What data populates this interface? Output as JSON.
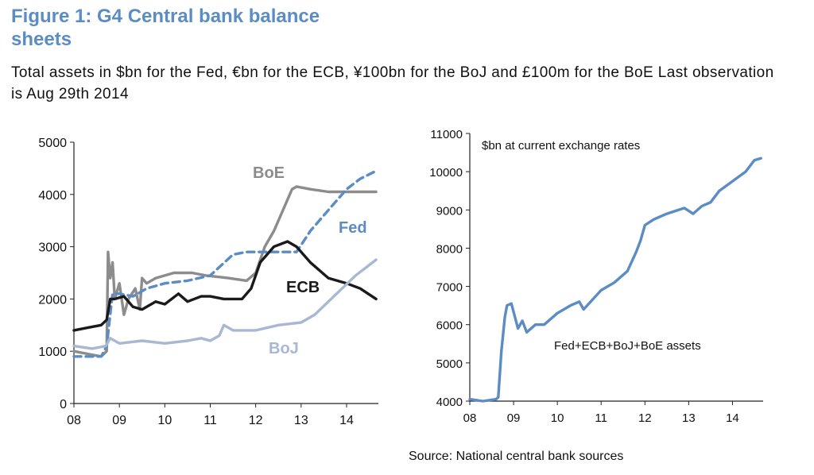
{
  "title": "Figure 1: G4 Central bank balance sheets",
  "subtitle": "Total assets in $bn for the Fed, €bn for the  ECB, ¥100bn for the BoJ and £100m for the BoE Last observation is Aug 29th 2014",
  "source": "Source: National central bank sources",
  "chart_data": [
    {
      "type": "line",
      "ylim": [
        0,
        5000
      ],
      "yticks": [
        "0",
        "1000",
        "2000",
        "3000",
        "4000",
        "5000"
      ],
      "xlim": [
        2008,
        2014.7
      ],
      "xticks": [
        "08",
        "09",
        "10",
        "11",
        "12",
        "13",
        "14"
      ],
      "series": [
        {
          "name": "BoE",
          "color": "#8c8c8c",
          "style": "solid",
          "x": [
            2008.0,
            2008.3,
            2008.6,
            2008.72,
            2008.75,
            2008.8,
            2008.85,
            2008.9,
            2009.0,
            2009.1,
            2009.2,
            2009.35,
            2009.45,
            2009.5,
            2009.6,
            2009.8,
            2010.2,
            2010.6,
            2010.9,
            2011.4,
            2011.8,
            2012.0,
            2012.2,
            2012.4,
            2012.6,
            2012.8,
            2012.9,
            2013.2,
            2013.6,
            2014.0,
            2014.3,
            2014.65
          ],
          "y": [
            1000,
            950,
            900,
            1000,
            2900,
            2400,
            2700,
            2000,
            2300,
            1700,
            2000,
            2200,
            1800,
            2400,
            2300,
            2400,
            2500,
            2500,
            2450,
            2400,
            2350,
            2500,
            3000,
            3300,
            3700,
            4100,
            4150,
            4100,
            4050,
            4050,
            4050,
            4050
          ]
        },
        {
          "name": "Fed",
          "color": "#5b8cc4",
          "style": "dashed",
          "x": [
            2008.0,
            2008.6,
            2008.72,
            2008.85,
            2009.0,
            2009.3,
            2009.6,
            2010.0,
            2010.5,
            2011.0,
            2011.5,
            2011.8,
            2012.0,
            2012.5,
            2012.9,
            2013.2,
            2013.6,
            2014.0,
            2014.3,
            2014.65
          ],
          "y": [
            900,
            900,
            1100,
            2100,
            2100,
            2050,
            2200,
            2300,
            2350,
            2450,
            2850,
            2900,
            2900,
            2900,
            2900,
            3300,
            3700,
            4100,
            4300,
            4450
          ]
        },
        {
          "name": "ECB",
          "color": "#1a1a1a",
          "style": "solid",
          "x": [
            2008.0,
            2008.3,
            2008.6,
            2008.72,
            2008.8,
            2008.9,
            2009.1,
            2009.3,
            2009.5,
            2009.8,
            2010.0,
            2010.3,
            2010.5,
            2010.8,
            2011.0,
            2011.3,
            2011.7,
            2011.9,
            2012.1,
            2012.4,
            2012.7,
            2012.9,
            2013.2,
            2013.6,
            2014.0,
            2014.3,
            2014.65
          ],
          "y": [
            1400,
            1450,
            1500,
            1600,
            2000,
            2000,
            2050,
            1850,
            1800,
            1950,
            1900,
            2100,
            1950,
            2050,
            2050,
            2000,
            2000,
            2200,
            2700,
            3000,
            3100,
            3000,
            2700,
            2400,
            2300,
            2200,
            2000
          ]
        },
        {
          "name": "BoJ",
          "color": "#a8b7d4",
          "style": "solid",
          "x": [
            2008.0,
            2008.4,
            2008.7,
            2008.8,
            2009.0,
            2009.5,
            2010.0,
            2010.5,
            2010.8,
            2011.0,
            2011.2,
            2011.3,
            2011.5,
            2012.0,
            2012.5,
            2013.0,
            2013.3,
            2013.6,
            2013.9,
            2014.2,
            2014.5,
            2014.65
          ],
          "y": [
            1100,
            1050,
            1100,
            1250,
            1150,
            1200,
            1150,
            1200,
            1250,
            1200,
            1300,
            1500,
            1400,
            1400,
            1500,
            1550,
            1700,
            1950,
            2200,
            2450,
            2650,
            2750
          ]
        }
      ],
      "annotations": [
        "BoE",
        "Fed",
        "ECB",
        "BoJ"
      ]
    },
    {
      "type": "line",
      "ylim": [
        4000,
        11000
      ],
      "yticks": [
        "4000",
        "5000",
        "6000",
        "7000",
        "8000",
        "9000",
        "10000",
        "11000"
      ],
      "xlim": [
        2008,
        2014.7
      ],
      "xticks": [
        "08",
        "09",
        "10",
        "11",
        "12",
        "13",
        "14"
      ],
      "note_top": "$bn at current exchange rates",
      "note_series": "Fed+ECB+BoJ+BoE assets",
      "series": [
        {
          "name": "Fed+ECB+BoJ+BoE assets",
          "color": "#5b8cc4",
          "style": "solid",
          "x": [
            2008.0,
            2008.3,
            2008.6,
            2008.65,
            2008.72,
            2008.8,
            2008.85,
            2008.95,
            2009.1,
            2009.2,
            2009.3,
            2009.5,
            2009.7,
            2010.0,
            2010.3,
            2010.5,
            2010.6,
            2011.0,
            2011.3,
            2011.6,
            2011.8,
            2011.9,
            2012.0,
            2012.2,
            2012.5,
            2012.9,
            2013.1,
            2013.3,
            2013.5,
            2013.7,
            2014.0,
            2014.3,
            2014.5,
            2014.65
          ],
          "y": [
            4050,
            4000,
            4050,
            4100,
            5300,
            6200,
            6500,
            6550,
            5900,
            6100,
            5800,
            6000,
            6000,
            6300,
            6500,
            6600,
            6400,
            6900,
            7100,
            7400,
            7900,
            8200,
            8600,
            8750,
            8900,
            9050,
            8900,
            9100,
            9200,
            9500,
            9750,
            10000,
            10300,
            10350
          ]
        }
      ]
    }
  ]
}
